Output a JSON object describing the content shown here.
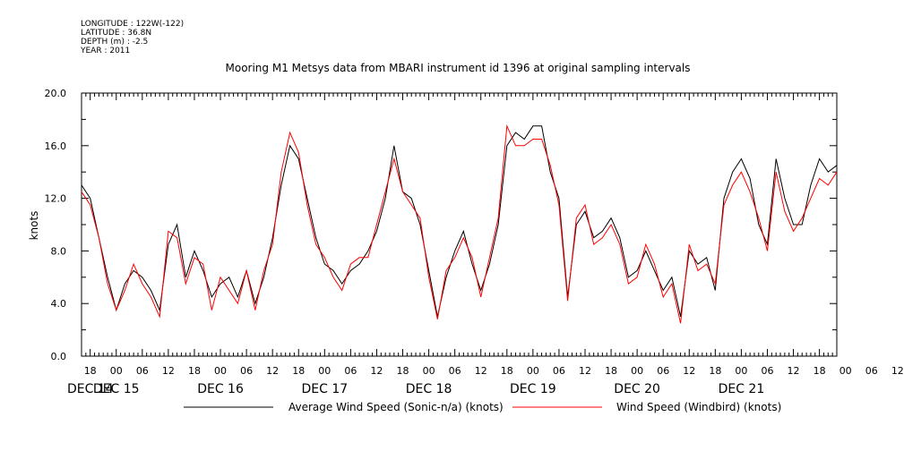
{
  "meta": {
    "longitude": "LONGITUDE : 122W(-122)",
    "latitude": "LATITUDE : 36.8N",
    "depth": "DEPTH (m) : -2.5",
    "year": "YEAR : 2011"
  },
  "chart_data": {
    "type": "line",
    "title": "Mooring M1 Metsys data from MBARI instrument id 1396 at original sampling intervals",
    "xlabel": "",
    "ylabel": "knots",
    "ylim": [
      0,
      20
    ],
    "xlim": [
      "2011-12-14T16:00",
      "2011-12-21T22:00"
    ],
    "y_ticks": [
      "0.0",
      "4.0",
      "8.0",
      "12.0",
      "16.0",
      "20.0"
    ],
    "x_hour_ticks": [
      "18",
      "00",
      "06",
      "12",
      "18",
      "00",
      "06",
      "12",
      "18",
      "00",
      "06",
      "12",
      "18",
      "00",
      "06",
      "12",
      "18",
      "00",
      "06",
      "12",
      "18",
      "00",
      "06",
      "12",
      "18",
      "00",
      "06",
      "12",
      "18",
      "00",
      "06",
      "12"
    ],
    "x_day_labels": [
      "DEC 14",
      "DEC 15",
      "DEC 16",
      "DEC 17",
      "DEC 18",
      "DEC 19",
      "DEC 20",
      "DEC 21"
    ],
    "series": [
      {
        "name": "Average Wind Speed (Sonic-n/a) (knots)",
        "color": "#000000",
        "x": [
          "2011-12-14T16:00",
          "2011-12-14T18:00",
          "2011-12-14T20:00",
          "2011-12-14T22:00",
          "2011-12-15T00:00",
          "2011-12-15T02:00",
          "2011-12-15T04:00",
          "2011-12-15T06:00",
          "2011-12-15T08:00",
          "2011-12-15T10:00",
          "2011-12-15T12:00",
          "2011-12-15T14:00",
          "2011-12-15T16:00",
          "2011-12-15T18:00",
          "2011-12-15T20:00",
          "2011-12-15T22:00",
          "2011-12-16T00:00",
          "2011-12-16T02:00",
          "2011-12-16T04:00",
          "2011-12-16T06:00",
          "2011-12-16T08:00",
          "2011-12-16T10:00",
          "2011-12-16T12:00",
          "2011-12-16T14:00",
          "2011-12-16T16:00",
          "2011-12-16T18:00",
          "2011-12-16T20:00",
          "2011-12-16T22:00",
          "2011-12-17T00:00",
          "2011-12-17T02:00",
          "2011-12-17T04:00",
          "2011-12-17T06:00",
          "2011-12-17T08:00",
          "2011-12-17T10:00",
          "2011-12-17T12:00",
          "2011-12-17T14:00",
          "2011-12-17T16:00",
          "2011-12-17T18:00",
          "2011-12-17T20:00",
          "2011-12-17T22:00",
          "2011-12-18T00:00",
          "2011-12-18T02:00",
          "2011-12-18T04:00",
          "2011-12-18T06:00",
          "2011-12-18T08:00",
          "2011-12-18T10:00",
          "2011-12-18T12:00",
          "2011-12-18T14:00",
          "2011-12-18T16:00",
          "2011-12-18T18:00",
          "2011-12-18T20:00",
          "2011-12-18T22:00",
          "2011-12-19T00:00",
          "2011-12-19T02:00",
          "2011-12-19T04:00",
          "2011-12-19T06:00",
          "2011-12-19T08:00",
          "2011-12-19T10:00",
          "2011-12-19T12:00",
          "2011-12-19T14:00",
          "2011-12-19T16:00",
          "2011-12-19T18:00",
          "2011-12-19T20:00",
          "2011-12-19T22:00",
          "2011-12-20T00:00",
          "2011-12-20T02:00",
          "2011-12-20T04:00",
          "2011-12-20T06:00",
          "2011-12-20T08:00",
          "2011-12-20T10:00",
          "2011-12-20T12:00",
          "2011-12-20T14:00",
          "2011-12-20T16:00",
          "2011-12-20T18:00",
          "2011-12-20T20:00",
          "2011-12-20T22:00",
          "2011-12-21T00:00",
          "2011-12-21T02:00",
          "2011-12-21T04:00",
          "2011-12-21T06:00",
          "2011-12-21T08:00",
          "2011-12-21T10:00",
          "2011-12-21T12:00",
          "2011-12-21T14:00",
          "2011-12-21T16:00",
          "2011-12-21T18:00",
          "2011-12-21T20:00",
          "2011-12-21T22:00"
        ],
        "values": [
          13.0,
          12.0,
          9.0,
          6.0,
          3.5,
          5.5,
          6.5,
          6.0,
          5.0,
          3.5,
          8.5,
          10.0,
          6.0,
          8.0,
          6.5,
          4.5,
          5.5,
          6.0,
          4.5,
          6.5,
          4.0,
          6.0,
          9.0,
          13.0,
          16.0,
          15.0,
          12.0,
          9.0,
          7.0,
          6.5,
          5.5,
          6.5,
          7.0,
          8.0,
          9.5,
          12.0,
          16.0,
          12.5,
          12.0,
          10.0,
          6.5,
          3.0,
          6.0,
          8.0,
          9.5,
          7.0,
          5.0,
          7.0,
          10.0,
          16.0,
          17.0,
          16.5,
          17.5,
          17.5,
          14.0,
          12.0,
          4.5,
          10.0,
          11.0,
          9.0,
          9.5,
          10.5,
          9.0,
          6.0,
          6.5,
          8.0,
          6.5,
          5.0,
          6.0,
          3.0,
          8.0,
          7.0,
          7.5,
          5.0,
          12.0,
          14.0,
          15.0,
          13.5,
          10.0,
          8.5,
          15.0,
          12.0,
          10.0,
          10.0,
          13.0,
          15.0,
          14.0,
          14.5
        ],
        "note_values_per_time": "values align with x[0..87]"
      },
      {
        "name": "Wind Speed (Windbird) (knots)",
        "color": "#ff0000",
        "x": [
          "2011-12-14T16:00",
          "2011-12-14T18:00",
          "2011-12-14T20:00",
          "2011-12-14T22:00",
          "2011-12-15T00:00",
          "2011-12-15T02:00",
          "2011-12-15T04:00",
          "2011-12-15T06:00",
          "2011-12-15T08:00",
          "2011-12-15T10:00",
          "2011-12-15T12:00",
          "2011-12-15T14:00",
          "2011-12-15T16:00",
          "2011-12-15T18:00",
          "2011-12-15T20:00",
          "2011-12-15T22:00",
          "2011-12-16T00:00",
          "2011-12-16T02:00",
          "2011-12-16T04:00",
          "2011-12-16T06:00",
          "2011-12-16T08:00",
          "2011-12-16T10:00",
          "2011-12-16T12:00",
          "2011-12-16T14:00",
          "2011-12-16T16:00",
          "2011-12-16T18:00",
          "2011-12-16T20:00",
          "2011-12-16T22:00",
          "2011-12-17T00:00",
          "2011-12-17T02:00",
          "2011-12-17T04:00",
          "2011-12-17T06:00",
          "2011-12-17T08:00",
          "2011-12-17T10:00",
          "2011-12-17T12:00",
          "2011-12-17T14:00",
          "2011-12-17T16:00",
          "2011-12-17T18:00",
          "2011-12-17T20:00",
          "2011-12-17T22:00",
          "2011-12-18T00:00",
          "2011-12-18T02:00",
          "2011-12-18T04:00",
          "2011-12-18T06:00",
          "2011-12-18T08:00",
          "2011-12-18T10:00",
          "2011-12-18T12:00",
          "2011-12-18T14:00",
          "2011-12-18T16:00",
          "2011-12-18T18:00",
          "2011-12-18T20:00",
          "2011-12-18T22:00",
          "2011-12-19T00:00",
          "2011-12-19T02:00",
          "2011-12-19T04:00",
          "2011-12-19T06:00",
          "2011-12-19T08:00",
          "2011-12-19T10:00",
          "2011-12-19T12:00",
          "2011-12-19T14:00",
          "2011-12-19T16:00",
          "2011-12-19T18:00",
          "2011-12-19T20:00",
          "2011-12-19T22:00",
          "2011-12-20T00:00",
          "2011-12-20T02:00",
          "2011-12-20T04:00",
          "2011-12-20T06:00",
          "2011-12-20T08:00",
          "2011-12-20T10:00",
          "2011-12-20T12:00",
          "2011-12-20T14:00",
          "2011-12-20T16:00",
          "2011-12-20T18:00",
          "2011-12-20T20:00",
          "2011-12-20T22:00",
          "2011-12-21T00:00",
          "2011-12-21T02:00",
          "2011-12-21T04:00",
          "2011-12-21T06:00",
          "2011-12-21T08:00",
          "2011-12-21T10:00",
          "2011-12-21T12:00",
          "2011-12-21T14:00",
          "2011-12-21T16:00",
          "2011-12-21T18:00",
          "2011-12-21T20:00",
          "2011-12-21T22:00"
        ],
        "values": [
          12.5,
          11.5,
          9.0,
          5.5,
          3.5,
          5.0,
          7.0,
          5.5,
          4.5,
          3.0,
          9.5,
          9.0,
          5.5,
          7.5,
          7.0,
          3.5,
          6.0,
          5.0,
          4.0,
          6.5,
          3.5,
          6.5,
          8.5,
          14.0,
          17.0,
          15.5,
          11.5,
          8.5,
          7.5,
          6.0,
          5.0,
          7.0,
          7.5,
          7.5,
          10.0,
          12.5,
          15.0,
          12.5,
          11.5,
          10.5,
          6.0,
          2.8,
          6.5,
          7.5,
          9.0,
          7.5,
          4.5,
          7.5,
          10.5,
          17.5,
          16.0,
          16.0,
          16.5,
          16.5,
          14.5,
          11.5,
          4.2,
          10.5,
          11.5,
          8.5,
          9.0,
          10.0,
          8.5,
          5.5,
          6.0,
          8.5,
          7.0,
          4.5,
          5.5,
          2.5,
          8.5,
          6.5,
          7.0,
          5.5,
          11.5,
          13.0,
          14.0,
          12.5,
          10.5,
          8.0,
          14.0,
          11.0,
          9.5,
          10.5,
          12.0,
          13.5,
          13.0,
          14.0
        ]
      }
    ],
    "grid": false,
    "legend_position": "bottom"
  }
}
